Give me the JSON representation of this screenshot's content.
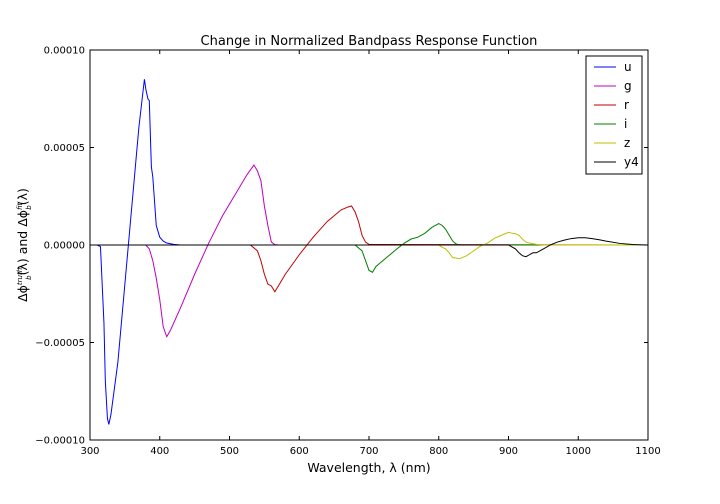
{
  "chart_data": {
    "type": "line",
    "title": "Change in Normalized Bandpass Response Function",
    "xlabel": "Wavelength, λ (nm)",
    "ylabel_parts": [
      "Δϕ",
      "truth",
      "b",
      "(λ) and Δϕ",
      "fit",
      "b",
      "(λ)"
    ],
    "xlim": [
      300,
      1100
    ],
    "ylim": [
      -0.0001,
      0.0001
    ],
    "x_ticks": [
      "300",
      "400",
      "500",
      "600",
      "700",
      "800",
      "900",
      "1000",
      "1100"
    ],
    "x_tick_values": [
      300,
      400,
      500,
      600,
      700,
      800,
      900,
      1000,
      1100
    ],
    "y_ticks": [
      "0.00010",
      "0.00005",
      "0.00000",
      "−0.00005",
      "−0.00010"
    ],
    "y_tick_values": [
      0.0001,
      5e-05,
      0,
      -5e-05,
      -0.0001
    ],
    "grid": false,
    "legend_position": "top-right",
    "series": [
      {
        "name": "u",
        "color": "#0000ff",
        "x": [
          300,
          310,
          315,
          320,
          322,
          325,
          327,
          330,
          340,
          350,
          360,
          370,
          378,
          380,
          383,
          385,
          388,
          390,
          393,
          395,
          400,
          405,
          410,
          420,
          430,
          1100
        ],
        "y": [
          0,
          0,
          -8e-07,
          -4e-05,
          -7e-05,
          -8.9e-05,
          -9.2e-05,
          -8.7e-05,
          -6e-05,
          -2e-05,
          2e-05,
          6e-05,
          8.5e-05,
          8e-05,
          7.5e-05,
          7.4e-05,
          4e-05,
          3.5e-05,
          2e-05,
          1e-05,
          4e-06,
          2e-06,
          1e-06,
          3e-07,
          0,
          0
        ]
      },
      {
        "name": "g",
        "color": "#bf00bf",
        "x": [
          300,
          380,
          385,
          390,
          395,
          400,
          405,
          410,
          415,
          420,
          430,
          450,
          470,
          490,
          510,
          525,
          535,
          540,
          545,
          550,
          555,
          560,
          565,
          570,
          1100
        ],
        "y": [
          0,
          0,
          -2e-06,
          -8e-06,
          -1.7e-05,
          -2.8e-05,
          -4.2e-05,
          -4.7e-05,
          -4.4e-05,
          -4e-05,
          -3.2e-05,
          -1.5e-05,
          8e-07,
          1.5e-05,
          2.7e-05,
          3.6e-05,
          4.1e-05,
          3.8e-05,
          3.3e-05,
          2e-05,
          1e-05,
          1.5e-06,
          2e-07,
          0,
          0
        ]
      },
      {
        "name": "r",
        "color": "#bf0000",
        "x": [
          300,
          530,
          540,
          545,
          550,
          555,
          560,
          565,
          570,
          580,
          600,
          620,
          640,
          660,
          670,
          675,
          680,
          685,
          690,
          695,
          700,
          1100
        ],
        "y": [
          0,
          0,
          -3e-06,
          -8e-06,
          -1.5e-05,
          -2e-05,
          -2.1e-05,
          -2.4e-05,
          -2.1e-05,
          -1.5e-05,
          -5e-06,
          4e-06,
          1.2e-05,
          1.8e-05,
          1.95e-05,
          2e-05,
          1.7e-05,
          1.2e-05,
          5e-06,
          1.5e-06,
          3e-07,
          0
        ]
      },
      {
        "name": "i",
        "color": "#007f00",
        "x": [
          300,
          680,
          690,
          695,
          700,
          705,
          710,
          720,
          730,
          740,
          750,
          760,
          770,
          780,
          790,
          800,
          805,
          810,
          815,
          820,
          825,
          830,
          1100
        ],
        "y": [
          0,
          0,
          -3e-06,
          -8e-06,
          -1.3e-05,
          -1.4e-05,
          -1.1e-05,
          -8e-06,
          -5e-06,
          -2e-06,
          8e-07,
          3e-06,
          4e-06,
          6e-06,
          9e-06,
          1.1e-05,
          1e-05,
          8e-06,
          5e-06,
          2e-06,
          5e-07,
          0,
          0
        ]
      },
      {
        "name": "z",
        "color": "#bfbf00",
        "x": [
          300,
          800,
          805,
          810,
          815,
          820,
          830,
          840,
          850,
          860,
          870,
          880,
          890,
          900,
          905,
          910,
          915,
          920,
          925,
          930,
          940,
          950,
          1100
        ],
        "y": [
          0,
          0,
          -1.2e-06,
          -2e-06,
          -4e-06,
          -6.5e-06,
          -7e-06,
          -5.5e-06,
          -3e-06,
          -5e-07,
          1e-06,
          3.5e-06,
          5e-06,
          6.5e-06,
          6e-06,
          5.8e-06,
          5e-06,
          3e-06,
          1.5e-06,
          1e-06,
          3e-07,
          0,
          0
        ]
      },
      {
        "name": "y4",
        "color": "#000000",
        "x": [
          300,
          900,
          905,
          910,
          915,
          920,
          925,
          930,
          935,
          940,
          950,
          960,
          970,
          980,
          990,
          1000,
          1010,
          1020,
          1030,
          1040,
          1060,
          1080,
          1100
        ],
        "y": [
          0,
          0,
          -1e-06,
          -2e-06,
          -4e-06,
          -5.5e-06,
          -6e-06,
          -5e-06,
          -4e-06,
          -4e-06,
          -2e-06,
          0,
          1.5e-06,
          2.5e-06,
          3.3e-06,
          3.7e-06,
          3.7e-06,
          3.3e-06,
          2.7e-06,
          2e-06,
          8e-07,
          2e-07,
          0
        ]
      }
    ]
  }
}
